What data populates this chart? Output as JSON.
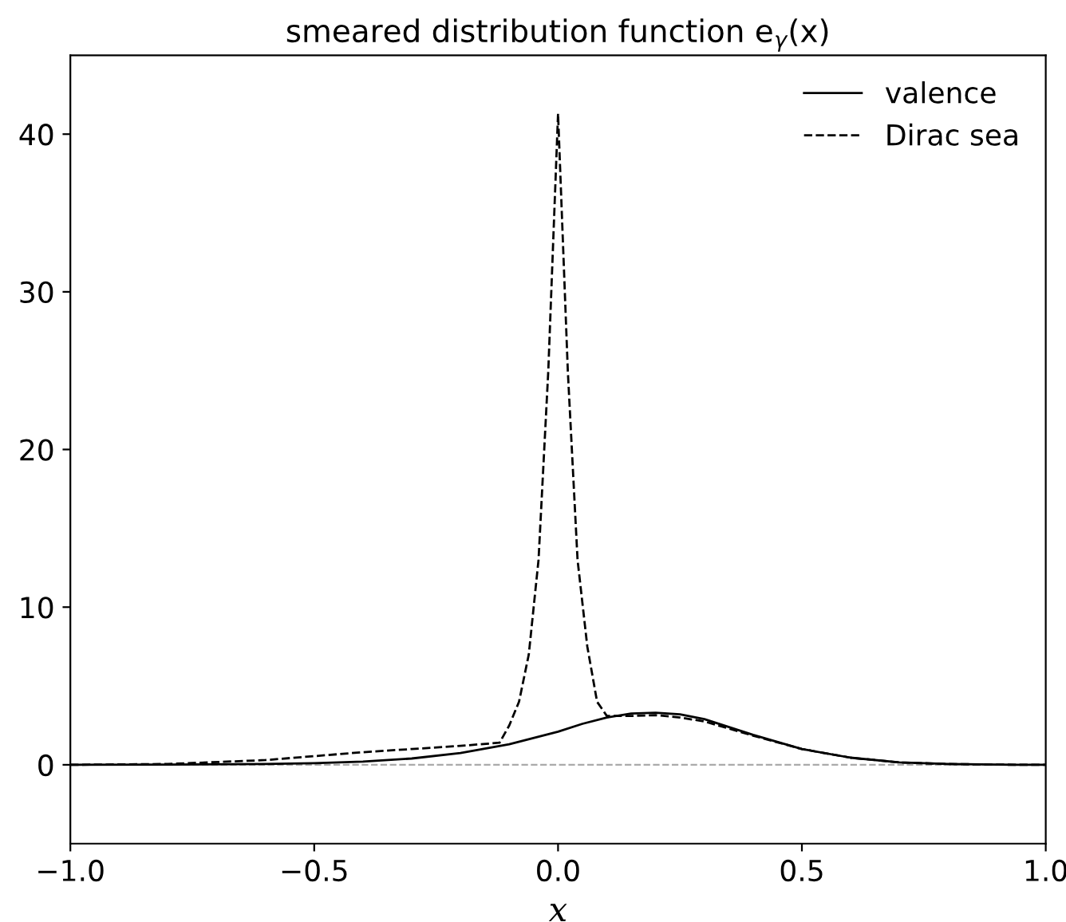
{
  "chart_data": {
    "type": "line",
    "title": "smeared distribution function e$_{γ}$(x)",
    "xlabel": "x",
    "xlim": [
      -1,
      1
    ],
    "xticks": [
      {
        "value": -1,
        "label": "−1.0"
      },
      {
        "value": -0.5,
        "label": "−0.5"
      },
      {
        "value": 0,
        "label": "0.0"
      },
      {
        "value": 0.5,
        "label": "0.5"
      },
      {
        "value": 1,
        "label": "1.0"
      }
    ],
    "ylim": [
      -5,
      45
    ],
    "yticks": [
      0,
      10,
      20,
      30,
      40
    ],
    "grid": false,
    "legend": "top right",
    "ref_lines": [
      {
        "axis": "y",
        "value": 0,
        "color": "#aaaaaa",
        "line_style": "dashed"
      }
    ],
    "series": [
      {
        "name": "valence",
        "color": "#000000",
        "line_style": "solid",
        "x": [
          -1,
          -0.8,
          -0.6,
          -0.5,
          -0.4,
          -0.3,
          -0.2,
          -0.1,
          0,
          0.05,
          0.1,
          0.15,
          0.2,
          0.25,
          0.3,
          0.4,
          0.5,
          0.6,
          0.7,
          0.8,
          0.9,
          1
        ],
        "values": [
          0,
          0.01,
          0.05,
          0.1,
          0.2,
          0.4,
          0.75,
          1.3,
          2.1,
          2.6,
          3.0,
          3.25,
          3.3,
          3.2,
          2.9,
          1.9,
          1.0,
          0.45,
          0.15,
          0.05,
          0.01,
          0
        ]
      },
      {
        "name": "Dirac sea",
        "color": "#000000",
        "line_style": "dashed",
        "x": [
          -1,
          -0.8,
          -0.6,
          -0.5,
          -0.4,
          -0.3,
          -0.2,
          -0.12,
          -0.1,
          -0.08,
          -0.06,
          -0.04,
          -0.02,
          0,
          0.02,
          0.04,
          0.06,
          0.08,
          0.1,
          0.15,
          0.2,
          0.25,
          0.3,
          0.4,
          0.5,
          0.6,
          0.7,
          0.8,
          0.9,
          1
        ],
        "values": [
          0,
          0.05,
          0.3,
          0.55,
          0.8,
          1.0,
          1.2,
          1.4,
          2.5,
          4,
          7,
          13,
          25,
          41.3,
          25,
          13,
          7.5,
          4,
          3.1,
          3.1,
          3.15,
          3.0,
          2.75,
          1.85,
          1.0,
          0.45,
          0.15,
          0.05,
          0.01,
          0
        ]
      }
    ]
  }
}
